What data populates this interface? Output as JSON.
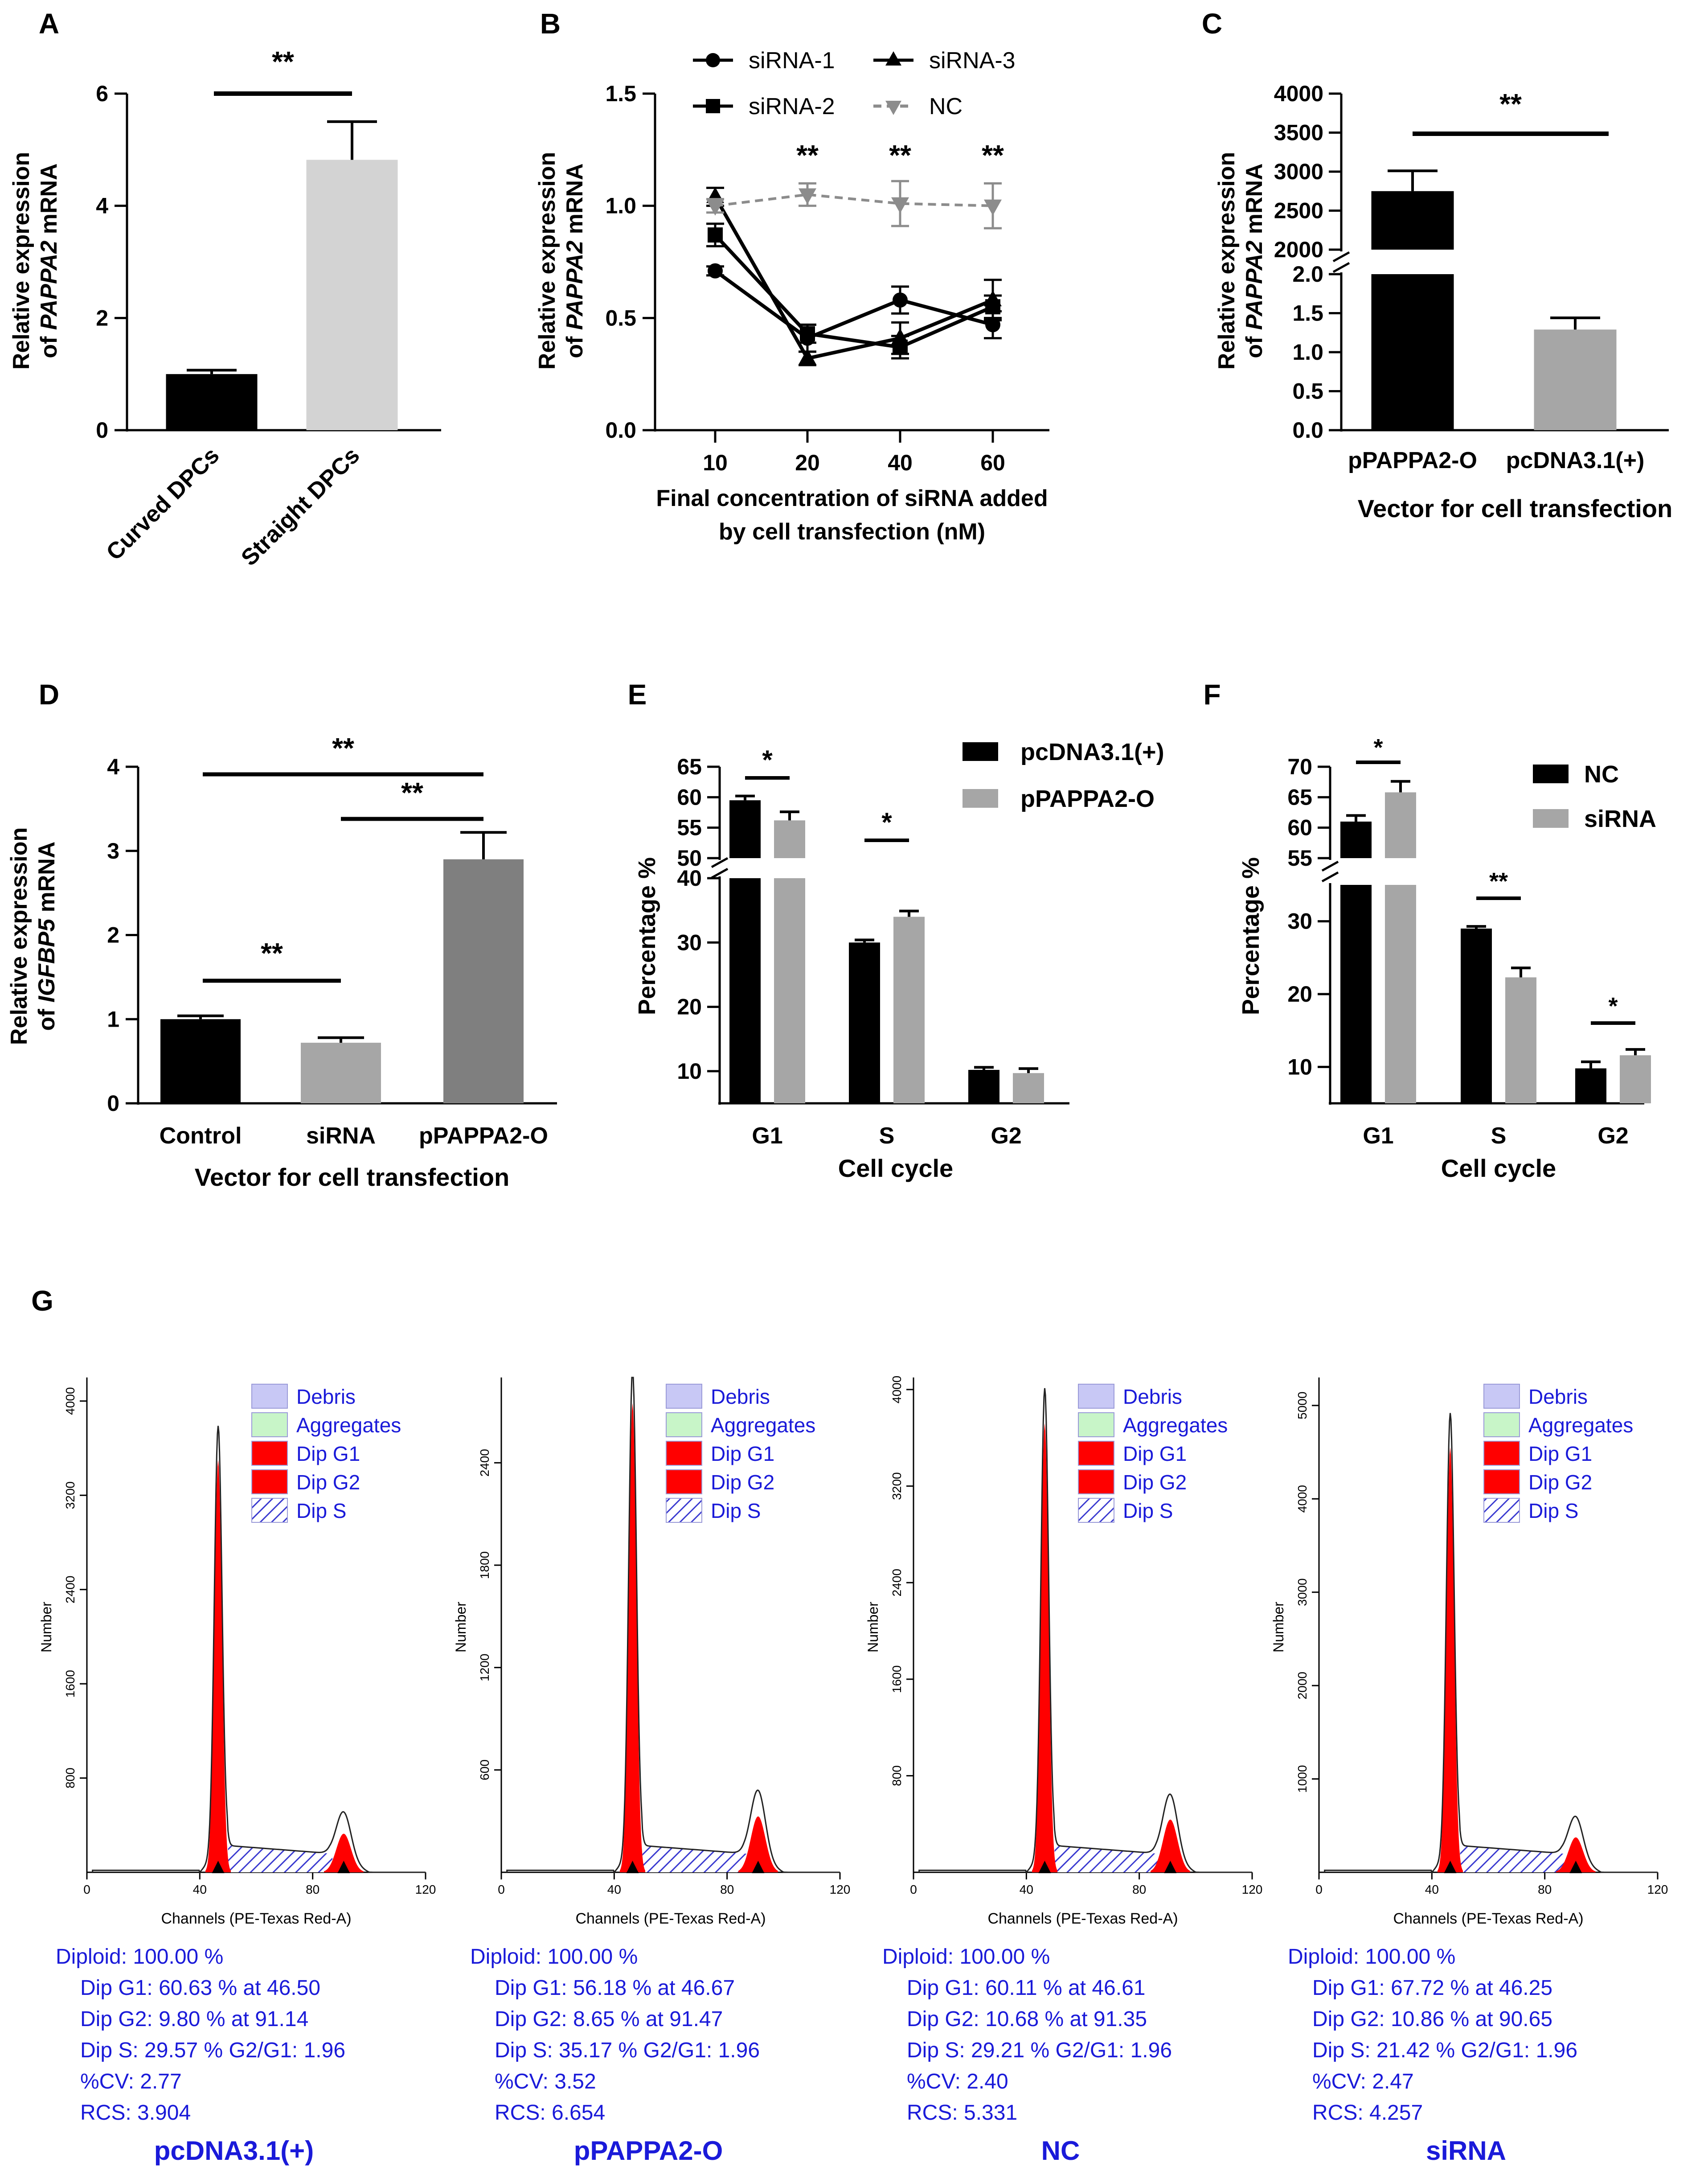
{
  "colors": {
    "black": "#000000",
    "lightgray": "#d3d3d3",
    "gray": "#a6a6a6",
    "darkgray": "#7f7f7f",
    "dashed": "#8c8c8c",
    "blue": "#1a1ad9",
    "red": "#ff0000",
    "debris": "#c8c8f5",
    "aggr": "#c8f5c8"
  },
  "chart_data": [
    {
      "id": "A",
      "type": "bar",
      "letter": "A",
      "categories": [
        "Curved DPCs",
        "Straight DPCs"
      ],
      "values": [
        1.0,
        4.82
      ],
      "errors": [
        0.07,
        0.68
      ],
      "ylabel_l1": "Relative expression",
      "ylabel_pre": "of ",
      "ylabel_gene": "PAPPA2",
      "ylabel_post": " mRNA",
      "ylim": [
        0,
        6
      ],
      "yticks": [
        "0",
        "2",
        "4",
        "6"
      ],
      "significance": "**"
    },
    {
      "id": "B",
      "type": "line",
      "letter": "B",
      "x": [
        "10",
        "20",
        "40",
        "60"
      ],
      "series": [
        {
          "name": "siRNA-1",
          "values": [
            0.71,
            0.41,
            0.58,
            0.47
          ],
          "errors": [
            0.02,
            0.06,
            0.06,
            0.06
          ]
        },
        {
          "name": "siRNA-2",
          "values": [
            0.87,
            0.43,
            0.37,
            0.55
          ],
          "errors": [
            0.05,
            0.04,
            0.05,
            0.05
          ]
        },
        {
          "name": "siRNA-3",
          "values": [
            1.04,
            0.32,
            0.41,
            0.58
          ],
          "errors": [
            0.04,
            0.03,
            0.07,
            0.09
          ]
        },
        {
          "name": "NC",
          "values": [
            1.0,
            1.05,
            1.01,
            1.0
          ],
          "errors": [
            0.03,
            0.05,
            0.1,
            0.1
          ]
        }
      ],
      "ylabel_l1": "Relative expression",
      "ylabel_pre": "of ",
      "ylabel_gene": "PAPPA2",
      "ylabel_post": " mRNA",
      "ylim": [
        0,
        1.5
      ],
      "yticks": [
        "0.0",
        "0.5",
        "1.0",
        "1.5"
      ],
      "xlabel_l1": "Final concentration of siRNA added",
      "xlabel_l2": "by cell transfection (nM)",
      "significance": [
        "**",
        "**",
        "**"
      ]
    },
    {
      "id": "C",
      "type": "bar",
      "letter": "C",
      "categories": [
        "pPAPPA2-O",
        "pcDNA3.1(+)"
      ],
      "values": [
        2750,
        1.29
      ],
      "errors": [
        260,
        0.15
      ],
      "ylabel_l1": "Relative expression",
      "ylabel_pre": "of ",
      "ylabel_gene": "PAPPA2",
      "ylabel_post": " mRNA",
      "yticks_upper": [
        "2000",
        "2500",
        "3000",
        "3500",
        "4000"
      ],
      "yticks_lower": [
        "0.0",
        "0.5",
        "1.0",
        "1.5",
        "2.0"
      ],
      "xlabel": "Vector for cell transfection",
      "significance": "**"
    },
    {
      "id": "D",
      "type": "bar",
      "letter": "D",
      "categories": [
        "Control",
        "siRNA",
        "pPAPPA2-O"
      ],
      "values": [
        1.0,
        0.72,
        2.9
      ],
      "errors": [
        0.04,
        0.06,
        0.32
      ],
      "ylabel_l1": "Relative expression",
      "ylabel_pre": "of ",
      "ylabel_gene": "IGFBP5",
      "ylabel_post": " mRNA",
      "ylim": [
        0,
        4
      ],
      "yticks": [
        "0",
        "1",
        "2",
        "3",
        "4"
      ],
      "xlabel": "Vector for cell transfection",
      "significance": [
        "**",
        "**",
        "**"
      ]
    },
    {
      "id": "E",
      "type": "bar",
      "letter": "E",
      "categories": [
        "G1",
        "S",
        "G2"
      ],
      "series": [
        {
          "name": "pcDNA3.1(+)",
          "values": [
            59.5,
            30,
            10.2
          ],
          "errors": [
            0.7,
            0.4,
            0.4
          ]
        },
        {
          "name": "pPAPPA2-O",
          "values": [
            56.2,
            34,
            9.7
          ],
          "errors": [
            1.4,
            0.9,
            0.7
          ]
        }
      ],
      "yticks_upper": [
        "50",
        "55",
        "60",
        "65"
      ],
      "yticks_lower": [
        "10",
        "20",
        "30",
        "40"
      ],
      "ylabel": "Percentage %",
      "xlabel": "Cell cycle",
      "significance": [
        "*",
        "*"
      ]
    },
    {
      "id": "F",
      "type": "bar",
      "letter": "F",
      "categories": [
        "G1",
        "S",
        "G2"
      ],
      "series": [
        {
          "name": "NC",
          "values": [
            61,
            29,
            9.8
          ],
          "errors": [
            1.0,
            0.3,
            0.9
          ]
        },
        {
          "name": "siRNA",
          "values": [
            65.8,
            22.3,
            11.6
          ],
          "errors": [
            1.8,
            1.3,
            0.8
          ]
        }
      ],
      "yticks_upper": [
        "55",
        "60",
        "65",
        "70"
      ],
      "yticks_lower": [
        "10",
        "20",
        "30"
      ],
      "ylabel": "Percentage %",
      "xlabel": "Cell cycle",
      "significance": [
        "*",
        "**",
        "*"
      ]
    },
    {
      "id": "G",
      "type": "histogram",
      "letter": "G",
      "xlabel": "Channels (PE-Texas Red-A)",
      "ylabel": "Number",
      "xticks": [
        "0",
        "40",
        "80",
        "120"
      ],
      "legend": [
        "Debris",
        "Aggregates",
        "Dip G1",
        "Dip G2",
        "Dip S"
      ],
      "panels": [
        {
          "label": "pcDNA3.1(+)",
          "yticks": [
            "800",
            "1600",
            "2400",
            "3200",
            "4000"
          ],
          "ymax": 4200,
          "g1_peak": 3500,
          "g2_peak": 420,
          "stats": [
            "Diploid: 100.00 %",
            "Dip G1: 60.63 % at 46.50",
            "Dip G2: 9.80 % at 91.14",
            "Dip S: 29.57 %    G2/G1: 1.96",
            "%CV: 2.77",
            "RCS: 3.904"
          ]
        },
        {
          "label": "pPAPPA2-O",
          "yticks": [
            "600",
            "1200",
            "1800",
            "2400"
          ],
          "ymax": 2900,
          "g1_peak": 2750,
          "g2_peak": 420,
          "stats": [
            "Diploid: 100.00 %",
            "Dip G1: 56.18 % at 46.67",
            "Dip G2: 8.65 % at 91.47",
            "Dip S: 35.17 %    G2/G1: 1.96",
            "%CV: 3.52",
            "RCS: 6.654"
          ]
        },
        {
          "label": "NC",
          "yticks": [
            "800",
            "1600",
            "2400",
            "3200",
            "4000"
          ],
          "ymax": 4100,
          "g1_peak": 3720,
          "g2_peak": 560,
          "stats": [
            "Diploid: 100.00 %",
            "Dip G1: 60.11 % at 46.61",
            "Dip G2: 10.68 % at 91.35",
            "Dip S: 29.21 %    G2/G1: 1.96",
            "%CV: 2.40",
            "RCS: 5.331"
          ]
        },
        {
          "label": "siRNA",
          "yticks": [
            "1000",
            "2000",
            "3000",
            "4000",
            "5000"
          ],
          "ymax": 5300,
          "g1_peak": 4550,
          "g2_peak": 480,
          "stats": [
            "Diploid: 100.00 %",
            "Dip G1: 67.72 % at 46.25",
            "Dip G2: 10.86 % at 90.65",
            "Dip S: 21.42 %    G2/G1: 1.96",
            "%CV: 2.47",
            "RCS: 4.257"
          ]
        }
      ]
    }
  ]
}
